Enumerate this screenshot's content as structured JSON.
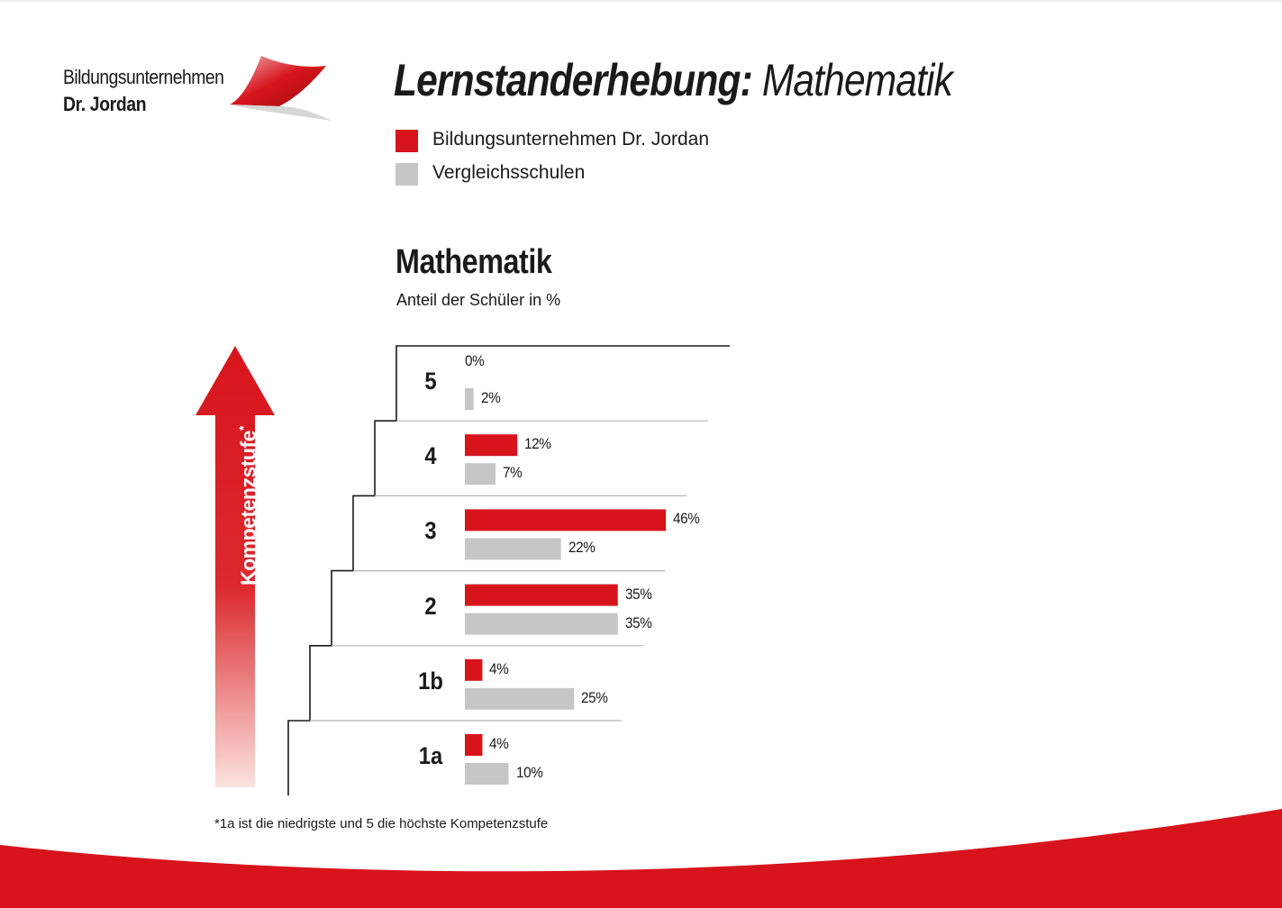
{
  "logo": {
    "line1": "Bildungsunternehmen",
    "line2": "Dr. Jordan"
  },
  "header": {
    "title_bold": "Lernstanderhebung:",
    "title_light": " Mathematik"
  },
  "legend": [
    {
      "label": "Bildungsunternehmen Dr. Jordan",
      "color": "#d7141c"
    },
    {
      "label": "Vergleichsschulen",
      "color": "#c6c6c6"
    }
  ],
  "axis": {
    "label": "Kompetenzstufe",
    "marker": "*",
    "arrow_color": "#d7141c"
  },
  "footnote": "*1a ist die niedrigste und 5 die höchste Kompetenzstufe",
  "chart_data": {
    "type": "bar",
    "orientation": "horizontal",
    "title": "Mathematik",
    "subtitle": "Anteil der Schüler in %",
    "categories": [
      "5",
      "4",
      "3",
      "2",
      "1b",
      "1a"
    ],
    "series": [
      {
        "name": "Bildungsunternehmen Dr. Jordan",
        "color": "#d7141c",
        "values": [
          0,
          12,
          46,
          35,
          4,
          4
        ],
        "labels": [
          "0%",
          "12%",
          "46%",
          "35%",
          "4%",
          "4%"
        ]
      },
      {
        "name": "Vergleichsschulen",
        "color": "#c6c6c6",
        "values": [
          2,
          7,
          22,
          35,
          25,
          10
        ],
        "labels": [
          "2%",
          "7%",
          "22%",
          "35%",
          "25%",
          "10%"
        ]
      }
    ],
    "unit": "%",
    "grid": false,
    "legend_position": "top"
  }
}
